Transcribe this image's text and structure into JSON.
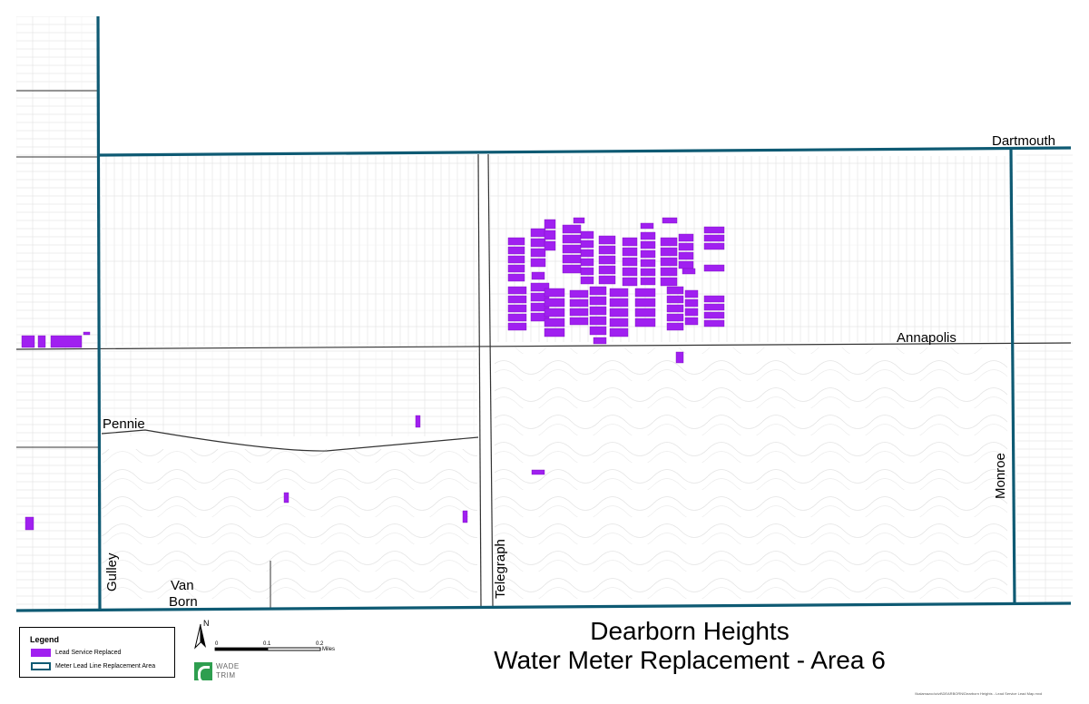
{
  "map": {
    "roads": {
      "dartmouth": "Dartmouth",
      "annapolis": "Annapolis",
      "pennie": "Pennie",
      "monroe": "Monroe",
      "telegraph": "Telegraph",
      "gulley": "Gulley",
      "van": "Van",
      "born": "Born"
    },
    "colors": {
      "lead_service": "#a020f0",
      "area_boundary": "#0e5a73",
      "parcel_lines": "#d8d8d8",
      "roads": "#333333"
    }
  },
  "legend": {
    "title": "Legend",
    "items": [
      {
        "label": "Lead Service Replaced",
        "color": "#a020f0",
        "symbol": "filled-rectangle"
      },
      {
        "label": "Meter Lead Line Replacement Area",
        "color": "#0e5a73",
        "symbol": "outline-rectangle"
      }
    ]
  },
  "north_arrow": {
    "label": "N"
  },
  "scale_bar": {
    "ticks": [
      "0",
      "0.1",
      "0.2"
    ],
    "unit": "Miles"
  },
  "logo": {
    "line1": "WADE",
    "line2": "TRIM"
  },
  "title": {
    "line1": "Dearborn Heights",
    "line2": "Water Meter Replacement - Area 6"
  },
  "footnote": "\\\\kalamazoo\\civil\\DEARBORN\\Dearborn Heights - Lead Service Lead Map.mxd"
}
